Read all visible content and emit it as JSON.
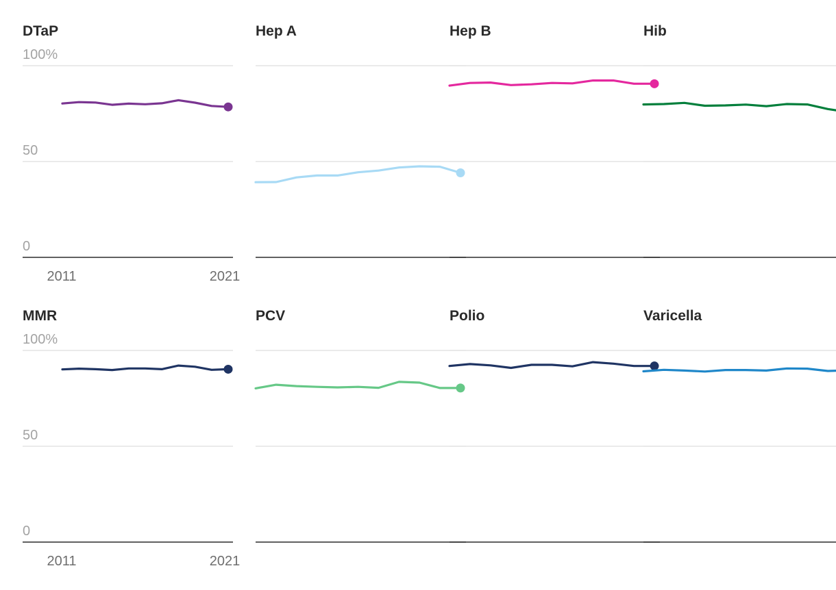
{
  "chart_data": {
    "type": "line",
    "layout": "small-multiples",
    "x_start": 2011,
    "x_end": 2021,
    "x_tick_labels": [
      "2011",
      "2021"
    ],
    "y_tick_labels": [
      "100%",
      "50",
      "0"
    ],
    "ylim": [
      0,
      100
    ],
    "grid": true,
    "panels": [
      {
        "name": "DTaP",
        "color": "#7a3591",
        "values": [
          80.3,
          81.0,
          80.8,
          79.6,
          80.2,
          79.9,
          80.4,
          82.0,
          80.7,
          79.0,
          78.5
        ]
      },
      {
        "name": "Hep A",
        "color": "#a8daf5",
        "values": [
          39.2,
          39.3,
          41.7,
          42.7,
          42.7,
          44.4,
          45.3,
          46.9,
          47.5,
          47.3,
          44.1
        ]
      },
      {
        "name": "Hep B",
        "color": "#e4289e",
        "values": [
          89.6,
          91.0,
          91.2,
          89.9,
          90.3,
          91.0,
          90.8,
          92.3,
          92.3,
          90.6,
          90.6
        ]
      },
      {
        "name": "Hib",
        "color": "#047f3c",
        "values": [
          79.8,
          80.0,
          80.6,
          79.1,
          79.3,
          79.7,
          78.9,
          80.0,
          79.8,
          77.4,
          75.8
        ]
      },
      {
        "name": "MMR",
        "color": "#1f3463",
        "values": [
          90.1,
          90.5,
          90.2,
          89.8,
          90.6,
          90.6,
          90.2,
          92.1,
          91.5,
          89.9,
          90.2
        ]
      },
      {
        "name": "PCV",
        "color": "#66c887",
        "values": [
          80.2,
          82.1,
          81.4,
          81.0,
          80.7,
          81.0,
          80.5,
          83.6,
          83.2,
          80.4,
          80.4
        ]
      },
      {
        "name": "Polio",
        "color": "#1f3463",
        "values": [
          91.9,
          92.9,
          92.2,
          90.9,
          92.5,
          92.5,
          91.7,
          93.9,
          93.1,
          91.9,
          91.9
        ]
      },
      {
        "name": "Varicella",
        "color": "#1f87c9",
        "values": [
          89.1,
          89.9,
          89.5,
          89.0,
          89.8,
          89.8,
          89.5,
          90.6,
          90.5,
          89.3,
          89.6
        ]
      }
    ]
  }
}
